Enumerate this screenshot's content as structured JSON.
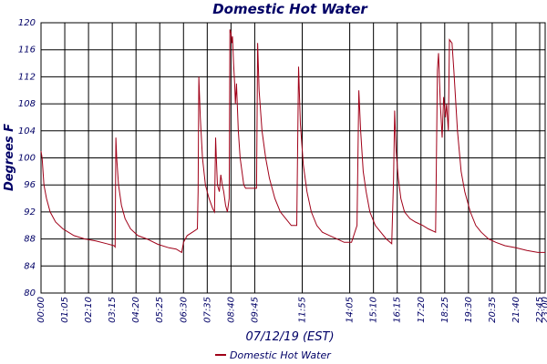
{
  "chart_data": {
    "type": "line",
    "title": "Domestic Hot Water",
    "x_label": "07/12/19 (EST)",
    "y_label": "Degrees F",
    "xlim": [
      0,
      1380
    ],
    "xticks": [
      {
        "value": 0,
        "label": "00:00"
      },
      {
        "value": 65,
        "label": "01:05"
      },
      {
        "value": 130,
        "label": "02:10"
      },
      {
        "value": 195,
        "label": "03:15"
      },
      {
        "value": 260,
        "label": "04:20"
      },
      {
        "value": 325,
        "label": "05:25"
      },
      {
        "value": 390,
        "label": "06:30"
      },
      {
        "value": 455,
        "label": "07:35"
      },
      {
        "value": 520,
        "label": "08:40"
      },
      {
        "value": 585,
        "label": "09:45"
      },
      {
        "value": 715,
        "label": "11:55"
      },
      {
        "value": 845,
        "label": "14:05"
      },
      {
        "value": 910,
        "label": "15:10"
      },
      {
        "value": 975,
        "label": "16:15"
      },
      {
        "value": 1040,
        "label": "17:20"
      },
      {
        "value": 1105,
        "label": "18:25"
      },
      {
        "value": 1170,
        "label": "19:30"
      },
      {
        "value": 1235,
        "label": "20:35"
      },
      {
        "value": 1300,
        "label": "21:40"
      },
      {
        "value": 1365,
        "label": "22:45"
      },
      {
        "value": 1380,
        "label": "23:00"
      }
    ],
    "ylim": [
      80,
      120
    ],
    "yticks": [
      80,
      84,
      88,
      92,
      96,
      100,
      104,
      108,
      112,
      116,
      120
    ],
    "grid": true,
    "legend": "bottom",
    "x": [
      0,
      3,
      8,
      15,
      25,
      40,
      60,
      90,
      120,
      150,
      180,
      200,
      203,
      205,
      207,
      212,
      220,
      230,
      245,
      265,
      290,
      320,
      350,
      370,
      385,
      390,
      400,
      420,
      428,
      430,
      432,
      436,
      442,
      450,
      460,
      470,
      475,
      478,
      480,
      483,
      488,
      492,
      496,
      500,
      505,
      510,
      515,
      517,
      520,
      522,
      524,
      527,
      530,
      532,
      535,
      540,
      545,
      550,
      555,
      560,
      590,
      593,
      597,
      605,
      615,
      625,
      640,
      655,
      670,
      685,
      700,
      705,
      710,
      718,
      728,
      740,
      755,
      770,
      790,
      810,
      830,
      850,
      865,
      870,
      875,
      882,
      890,
      900,
      915,
      930,
      945,
      960,
      965,
      968,
      972,
      978,
      985,
      995,
      1010,
      1025,
      1045,
      1060,
      1080,
      1085,
      1088,
      1093,
      1098,
      1102,
      1107,
      1110,
      1115,
      1118,
      1125,
      1130,
      1140,
      1150,
      1160,
      1175,
      1190,
      1205,
      1225,
      1245,
      1270,
      1300,
      1330,
      1360,
      1380
    ],
    "series": [
      {
        "name": "Domestic Hot Water",
        "color": "#a00018",
        "values": [
          101,
          100,
          96,
          94,
          92,
          90.5,
          89.5,
          88.5,
          88,
          87.7,
          87.3,
          87,
          86.8,
          103,
          100,
          96,
          93,
          91,
          89.5,
          88.5,
          88,
          87.2,
          86.7,
          86.5,
          86,
          87.5,
          88.5,
          89.2,
          89.5,
          95,
          112,
          106,
          100,
          96,
          94,
          92.5,
          92,
          103,
          100,
          96,
          95,
          97.5,
          96,
          95,
          93,
          92,
          94,
          119,
          118.5,
          117,
          118,
          114,
          111,
          108,
          111,
          104,
          100,
          98,
          96,
          95.5,
          95.5,
          117,
          110,
          104,
          100,
          97,
          94,
          92,
          91,
          90,
          90,
          113.5,
          105,
          99,
          95,
          92,
          90,
          89,
          88.5,
          88,
          87.5,
          87.5,
          90,
          110,
          104,
          98,
          95,
          92,
          90,
          89,
          88,
          87.3,
          97,
          107,
          101,
          97,
          94,
          92,
          91,
          90.5,
          90,
          89.5,
          89,
          113,
          115.5,
          108,
          103,
          109,
          106,
          108,
          104,
          117.5,
          117,
          113,
          104,
          98,
          95,
          92,
          90,
          89,
          88,
          87.5,
          87,
          86.7,
          86.3,
          86,
          86
        ]
      }
    ]
  }
}
